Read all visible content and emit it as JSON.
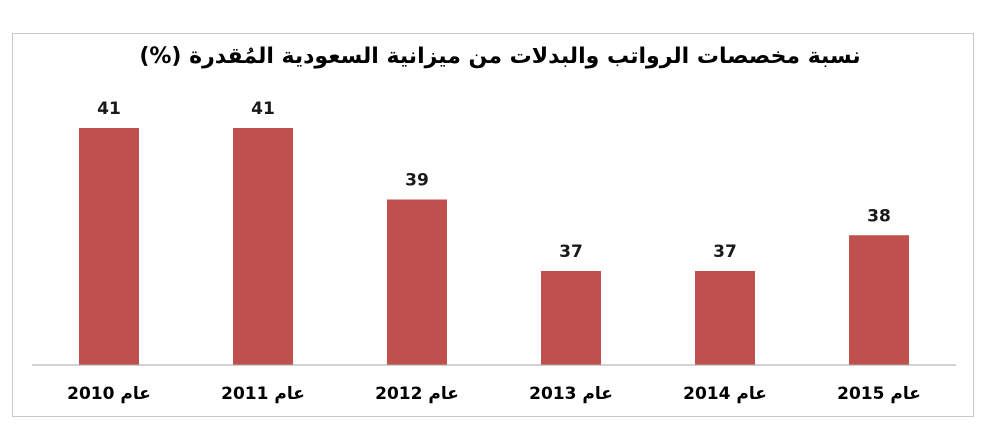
{
  "chart_data": {
    "type": "bar",
    "title": "نسبة مخصصات الرواتب والبدلات من ميزانية السعودية المُقدرة (%)",
    "categories": [
      "عام 2010",
      "عام 2011",
      "عام 2012",
      "عام 2013",
      "عام 2014",
      "عام 2015"
    ],
    "values": [
      41,
      41,
      39,
      37,
      37,
      38
    ],
    "bar_color": "#c0504d",
    "xlabel": "",
    "ylabel": "",
    "grid": false,
    "legend": "none"
  }
}
